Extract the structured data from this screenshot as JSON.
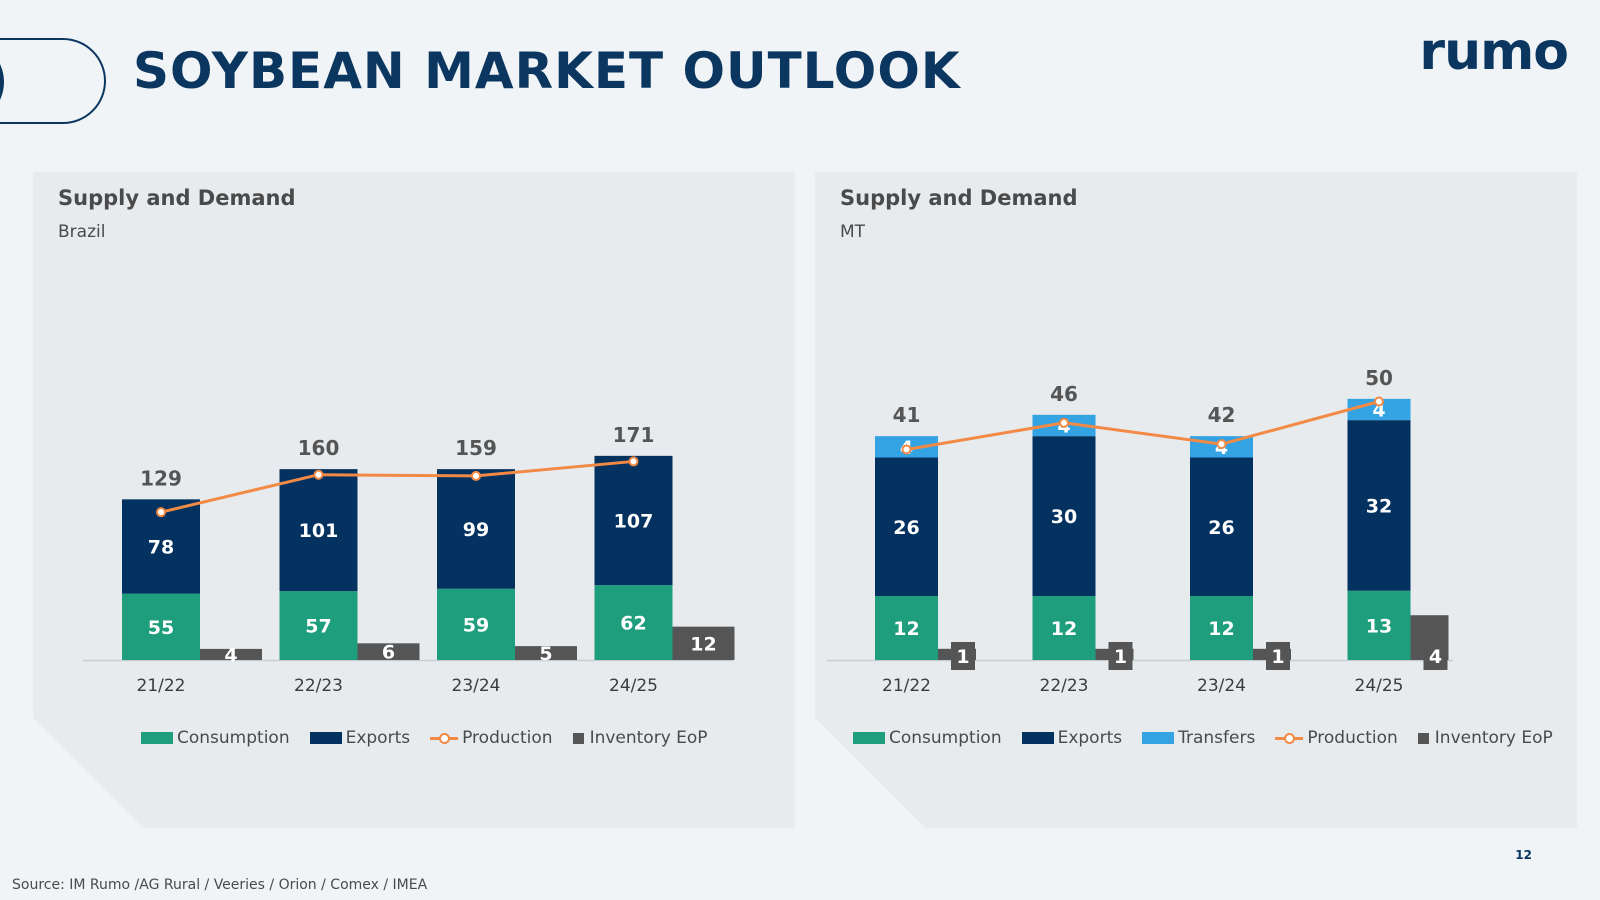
{
  "header": {
    "title": "SOYBEAN MARKET OUTLOOK",
    "logo": "rumo"
  },
  "colors": {
    "consumption": "#1e9e7c",
    "exports": "#033160",
    "transfers": "#33a3e3",
    "production": "#f28a45",
    "inventory": "#555555",
    "title": "#0b3660"
  },
  "chart_data": [
    {
      "type": "bar",
      "title": "Supply and Demand",
      "subtitle": "Brazil",
      "categories": [
        "21/22",
        "22/23",
        "23/24",
        "24/25"
      ],
      "series": [
        {
          "name": "Consumption",
          "kind": "stack",
          "values": [
            55,
            57,
            59,
            62
          ]
        },
        {
          "name": "Exports",
          "kind": "stack",
          "values": [
            78,
            101,
            99,
            107
          ]
        },
        {
          "name": "Production",
          "kind": "line",
          "values": [
            129,
            160,
            159,
            171
          ]
        },
        {
          "name": "Inventory EoP",
          "kind": "side",
          "values": [
            4,
            6,
            5,
            12
          ]
        }
      ],
      "totals": [
        129,
        160,
        159,
        171
      ],
      "legend": [
        "Consumption",
        "Exports",
        "Production",
        "Inventory EoP"
      ],
      "ylim": [
        0,
        190
      ]
    },
    {
      "type": "bar",
      "title": "Supply and Demand",
      "subtitle": "MT",
      "categories": [
        "21/22",
        "22/23",
        "23/24",
        "24/25"
      ],
      "series": [
        {
          "name": "Consumption",
          "kind": "stack",
          "values": [
            12,
            12,
            12,
            13
          ]
        },
        {
          "name": "Exports",
          "kind": "stack",
          "values": [
            26,
            30,
            26,
            32
          ]
        },
        {
          "name": "Transfers",
          "kind": "stack",
          "values": [
            4,
            4,
            4,
            4
          ]
        },
        {
          "name": "Production",
          "kind": "line",
          "values": [
            41,
            46,
            42,
            50
          ]
        },
        {
          "name": "Inventory EoP",
          "kind": "side",
          "values": [
            1,
            1,
            1,
            4
          ]
        }
      ],
      "totals": [
        41,
        46,
        42,
        50
      ],
      "legend": [
        "Consumption",
        "Exports",
        "Transfers",
        "Production",
        "Inventory EoP"
      ],
      "ylim": [
        0,
        52
      ]
    }
  ],
  "footer": {
    "page_number": "12",
    "source": "Source: IM Rumo /AG Rural / Veeries / Orion / Comex / IMEA"
  }
}
